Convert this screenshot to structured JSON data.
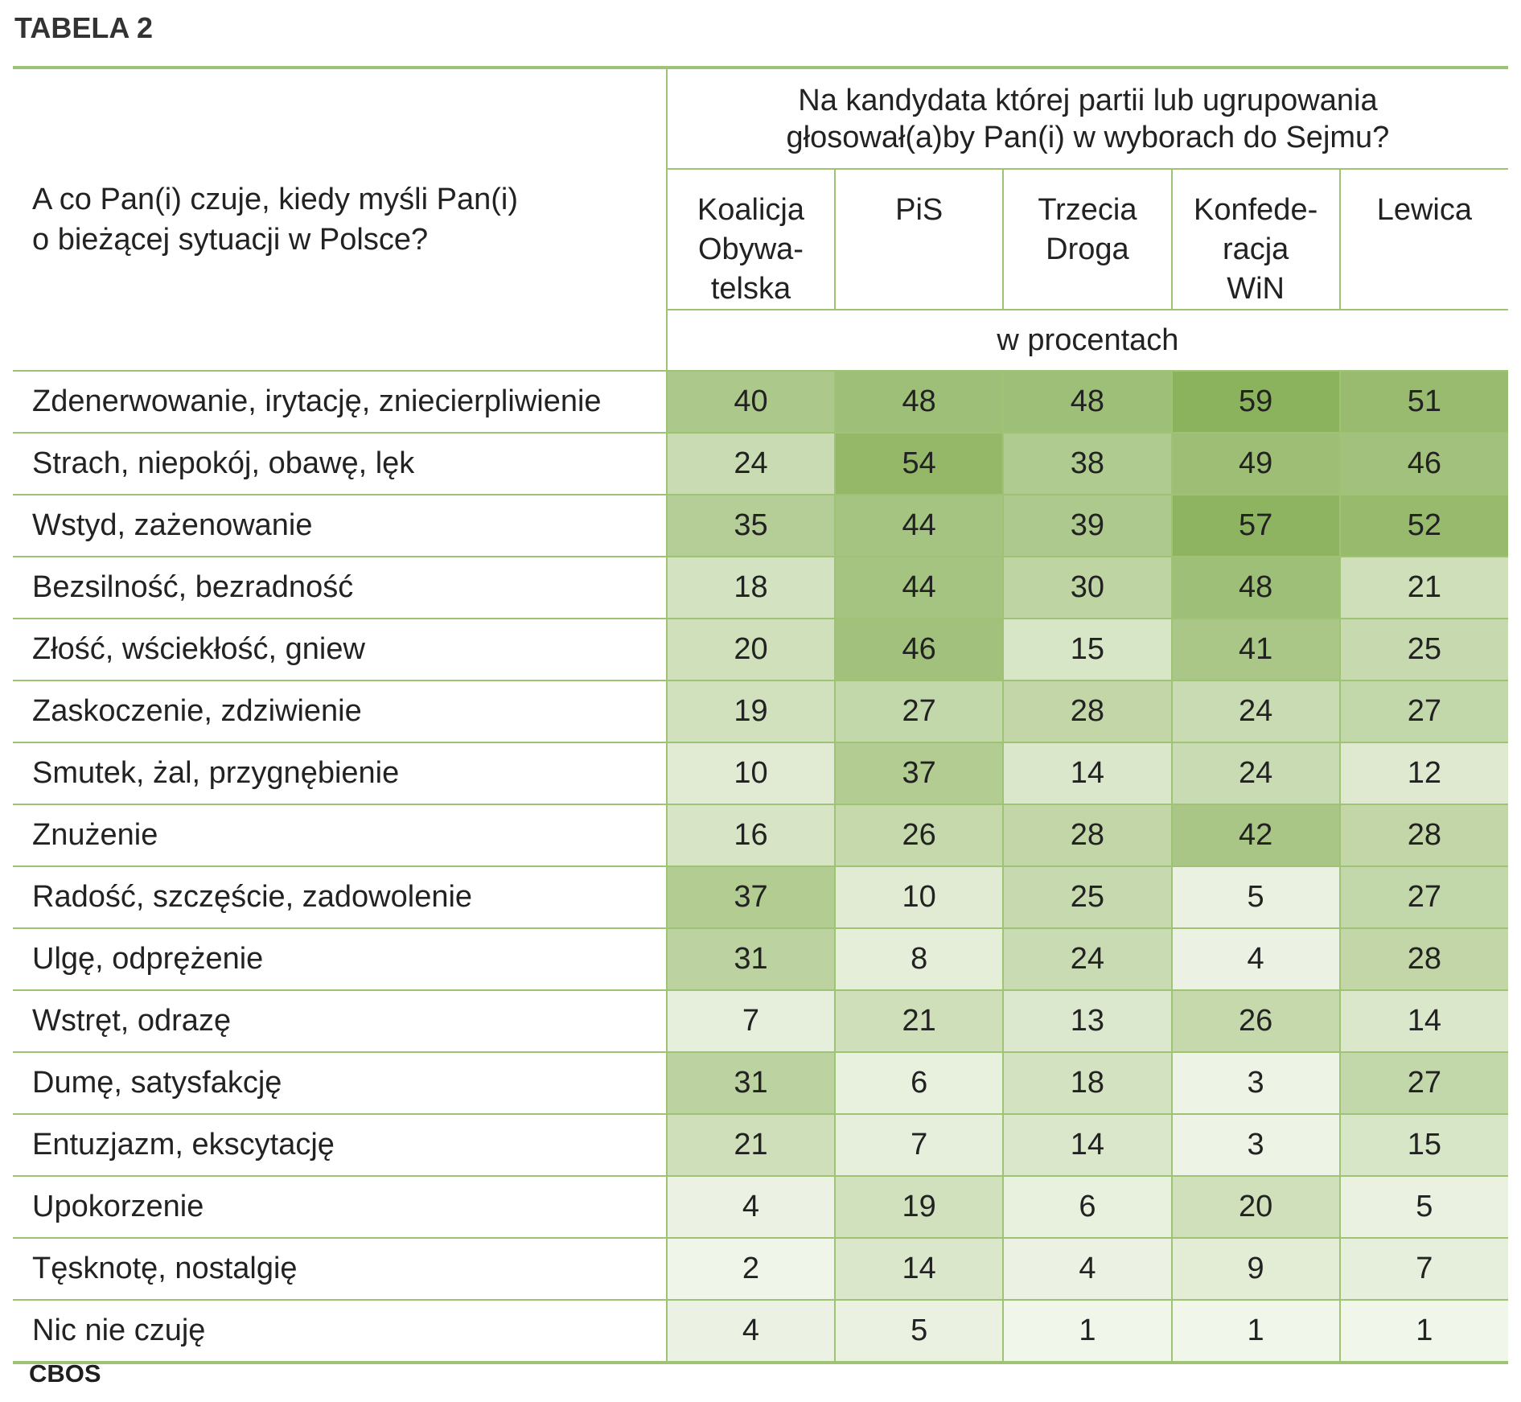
{
  "table_label": "TABELA 2",
  "question": "A co Pan(i) czuje, kiedy myśli Pan(i)\no bieżącej sytuacji w Polsce?",
  "header_question": "Na kandydata której partii lub ugrupowania\ngłosował(a)by Pan(i) w wyborach do Sejmu?",
  "unit_label": "w procentach",
  "source": "CBOS",
  "colors": {
    "accent_line": "#9fc374",
    "heat_low": "#f1f6ea",
    "heat_high": "#8bb25c"
  },
  "parties": [
    "Koalicja\nObywa-\ntelska",
    "PiS",
    "Trzecia\nDroga",
    "Konfede-\nracja\nWiN",
    "Lewica"
  ],
  "rows": [
    {
      "label": "Zdenerwowanie, irytację, zniecierpliwienie",
      "values": [
        40,
        48,
        48,
        59,
        51
      ]
    },
    {
      "label": "Strach, niepokój, obawę, lęk",
      "values": [
        24,
        54,
        38,
        49,
        46
      ]
    },
    {
      "label": "Wstyd, zażenowanie",
      "values": [
        35,
        44,
        39,
        57,
        52
      ]
    },
    {
      "label": "Bezsilność, bezradność",
      "values": [
        18,
        44,
        30,
        48,
        21
      ]
    },
    {
      "label": "Złość, wściekłość, gniew",
      "values": [
        20,
        46,
        15,
        41,
        25
      ]
    },
    {
      "label": "Zaskoczenie, zdziwienie",
      "values": [
        19,
        27,
        28,
        24,
        27
      ]
    },
    {
      "label": "Smutek, żal, przygnębienie",
      "values": [
        10,
        37,
        14,
        24,
        12
      ]
    },
    {
      "label": "Znużenie",
      "values": [
        16,
        26,
        28,
        42,
        28
      ]
    },
    {
      "label": "Radość, szczęście, zadowolenie",
      "values": [
        37,
        10,
        25,
        5,
        27
      ]
    },
    {
      "label": "Ulgę, odprężenie",
      "values": [
        31,
        8,
        24,
        4,
        28
      ]
    },
    {
      "label": "Wstręt, odrazę",
      "values": [
        7,
        21,
        13,
        26,
        14
      ]
    },
    {
      "label": "Dumę, satysfakcję",
      "values": [
        31,
        6,
        18,
        3,
        27
      ]
    },
    {
      "label": "Entuzjazm, ekscytację",
      "values": [
        21,
        7,
        14,
        3,
        15
      ]
    },
    {
      "label": "Upokorzenie",
      "values": [
        4,
        19,
        6,
        20,
        5
      ]
    },
    {
      "label": "Tęsknotę, nostalgię",
      "values": [
        2,
        14,
        4,
        9,
        7
      ]
    },
    {
      "label": "Nic nie czuję",
      "values": [
        4,
        5,
        1,
        1,
        1
      ]
    }
  ]
}
